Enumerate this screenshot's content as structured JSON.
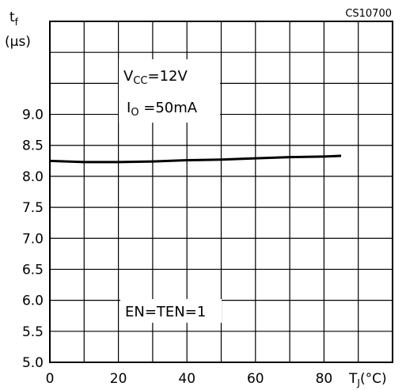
{
  "chart_data": {
    "type": "line",
    "figure_id": "CS10700",
    "ylabel_main": "t",
    "ylabel_sub": "f",
    "yunit": "(µs)",
    "xlabel_main": "T",
    "xlabel_sub": "J",
    "xunit": "(°C)",
    "xlim": [
      0,
      100
    ],
    "ylim": [
      5.0,
      10.5
    ],
    "x_ticks": [
      0,
      20,
      40,
      60,
      80
    ],
    "x_tick_labels": [
      "0",
      "20",
      "40",
      "60",
      "80"
    ],
    "y_ticks": [
      5.0,
      5.5,
      6.0,
      6.5,
      7.0,
      7.5,
      8.0,
      8.5,
      9.0
    ],
    "y_tick_labels": [
      "5.0",
      "5.5",
      "6.0",
      "6.5",
      "7.0",
      "7.5",
      "8.0",
      "8.5",
      "9.0"
    ],
    "grid": true,
    "series": [
      {
        "x": [
          0,
          10,
          20,
          30,
          40,
          50,
          60,
          70,
          80,
          85
        ],
        "y": [
          8.25,
          8.23,
          8.23,
          8.24,
          8.26,
          8.27,
          8.29,
          8.31,
          8.32,
          8.33
        ]
      }
    ],
    "annotations": {
      "vcc_main": "V",
      "vcc_sub": "CC",
      "vcc_value": "=12V",
      "io_main": "I",
      "io_sub": "O",
      "io_value": " =50mA",
      "en": "EN=TEN=1"
    },
    "colors": {
      "line": "#000000",
      "grid": "#000000",
      "background": "#ffffff"
    }
  }
}
